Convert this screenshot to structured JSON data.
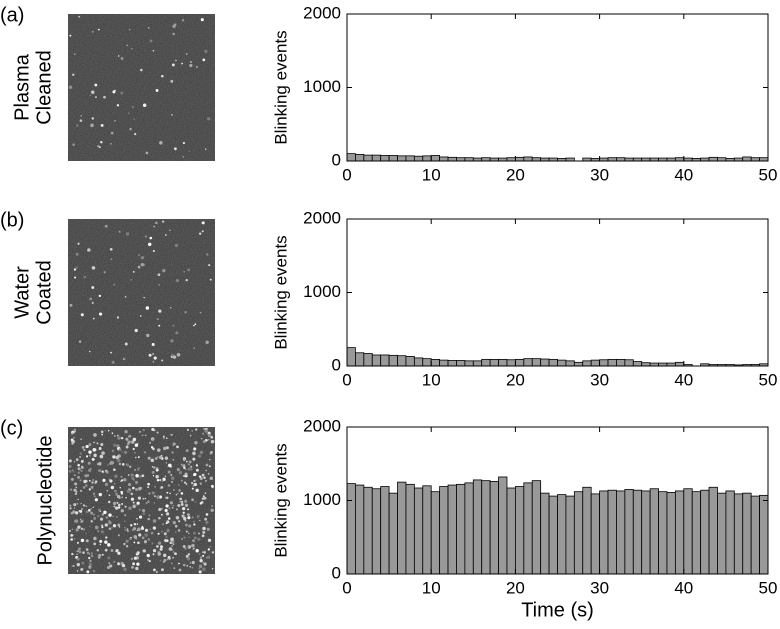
{
  "chart_data": [
    {
      "type": "histogram",
      "panel_label": "(a)",
      "image_label": [
        "Plasma",
        "Cleaned"
      ],
      "y_label": "Blinking events",
      "bins": [
        0,
        1,
        2,
        3,
        4,
        5,
        6,
        7,
        8,
        9,
        10,
        11,
        12,
        13,
        14,
        15,
        16,
        17,
        18,
        19,
        20,
        21,
        22,
        23,
        24,
        25,
        26,
        27,
        28,
        29,
        30,
        31,
        32,
        33,
        34,
        35,
        36,
        37,
        38,
        39,
        40,
        41,
        42,
        43,
        44,
        45,
        46,
        47,
        48,
        49,
        50
      ],
      "counts": [
        100,
        90,
        80,
        80,
        75,
        75,
        70,
        70,
        65,
        70,
        75,
        55,
        50,
        45,
        45,
        40,
        45,
        40,
        40,
        45,
        50,
        55,
        45,
        40,
        40,
        35,
        40,
        0,
        40,
        35,
        40,
        45,
        45,
        40,
        40,
        40,
        40,
        40,
        40,
        45,
        40,
        35,
        40,
        50,
        45,
        35,
        40,
        55,
        45,
        45
      ],
      "color": "#999999",
      "xlim": [
        0,
        50
      ],
      "ylim": [
        0,
        2000
      ],
      "xticks": [
        0,
        10,
        20,
        30,
        40,
        50
      ],
      "yticks": [
        0,
        1000,
        2000
      ]
    },
    {
      "type": "histogram",
      "panel_label": "(b)",
      "image_label": [
        "Water",
        "Coated"
      ],
      "y_label": "Blinking events",
      "bins": [
        0,
        1,
        2,
        3,
        4,
        5,
        6,
        7,
        8,
        9,
        10,
        11,
        12,
        13,
        14,
        15,
        16,
        17,
        18,
        19,
        20,
        21,
        22,
        23,
        24,
        25,
        26,
        27,
        28,
        29,
        30,
        31,
        32,
        33,
        34,
        35,
        36,
        37,
        38,
        39,
        40,
        41,
        42,
        43,
        44,
        45,
        46,
        47,
        48,
        49,
        50
      ],
      "counts": [
        250,
        180,
        170,
        150,
        150,
        145,
        140,
        130,
        110,
        100,
        90,
        80,
        75,
        75,
        70,
        70,
        90,
        90,
        90,
        85,
        90,
        100,
        100,
        95,
        90,
        80,
        70,
        50,
        70,
        80,
        85,
        90,
        90,
        85,
        60,
        45,
        40,
        40,
        40,
        50,
        20,
        0,
        30,
        20,
        20,
        20,
        15,
        20,
        20,
        30
      ],
      "color": "#999999",
      "xlim": [
        0,
        50
      ],
      "ylim": [
        0,
        2000
      ],
      "xticks": [
        0,
        10,
        20,
        30,
        40,
        50
      ],
      "yticks": [
        0,
        1000,
        2000
      ]
    },
    {
      "type": "histogram",
      "panel_label": "(c)",
      "image_label": [
        "Polynucleotide"
      ],
      "y_label": "Blinking events",
      "x_label": "Time (s)",
      "bins": [
        0,
        1,
        2,
        3,
        4,
        5,
        6,
        7,
        8,
        9,
        10,
        11,
        12,
        13,
        14,
        15,
        16,
        17,
        18,
        19,
        20,
        21,
        22,
        23,
        24,
        25,
        26,
        27,
        28,
        29,
        30,
        31,
        32,
        33,
        34,
        35,
        36,
        37,
        38,
        39,
        40,
        41,
        42,
        43,
        44,
        45,
        46,
        47,
        48,
        49,
        50
      ],
      "counts": [
        1230,
        1210,
        1180,
        1160,
        1190,
        1100,
        1250,
        1220,
        1170,
        1200,
        1120,
        1190,
        1210,
        1220,
        1240,
        1280,
        1270,
        1260,
        1320,
        1170,
        1190,
        1240,
        1270,
        1100,
        1060,
        1080,
        1060,
        1120,
        1180,
        1090,
        1130,
        1140,
        1130,
        1150,
        1140,
        1130,
        1160,
        1120,
        1110,
        1130,
        1160,
        1120,
        1140,
        1180,
        1100,
        1130,
        1090,
        1100,
        1060,
        1070
      ],
      "color": "#999999",
      "xlim": [
        0,
        50
      ],
      "ylim": [
        0,
        2000
      ],
      "xticks": [
        0,
        10,
        20,
        30,
        40,
        50
      ],
      "yticks": [
        0,
        1000,
        2000
      ]
    }
  ]
}
